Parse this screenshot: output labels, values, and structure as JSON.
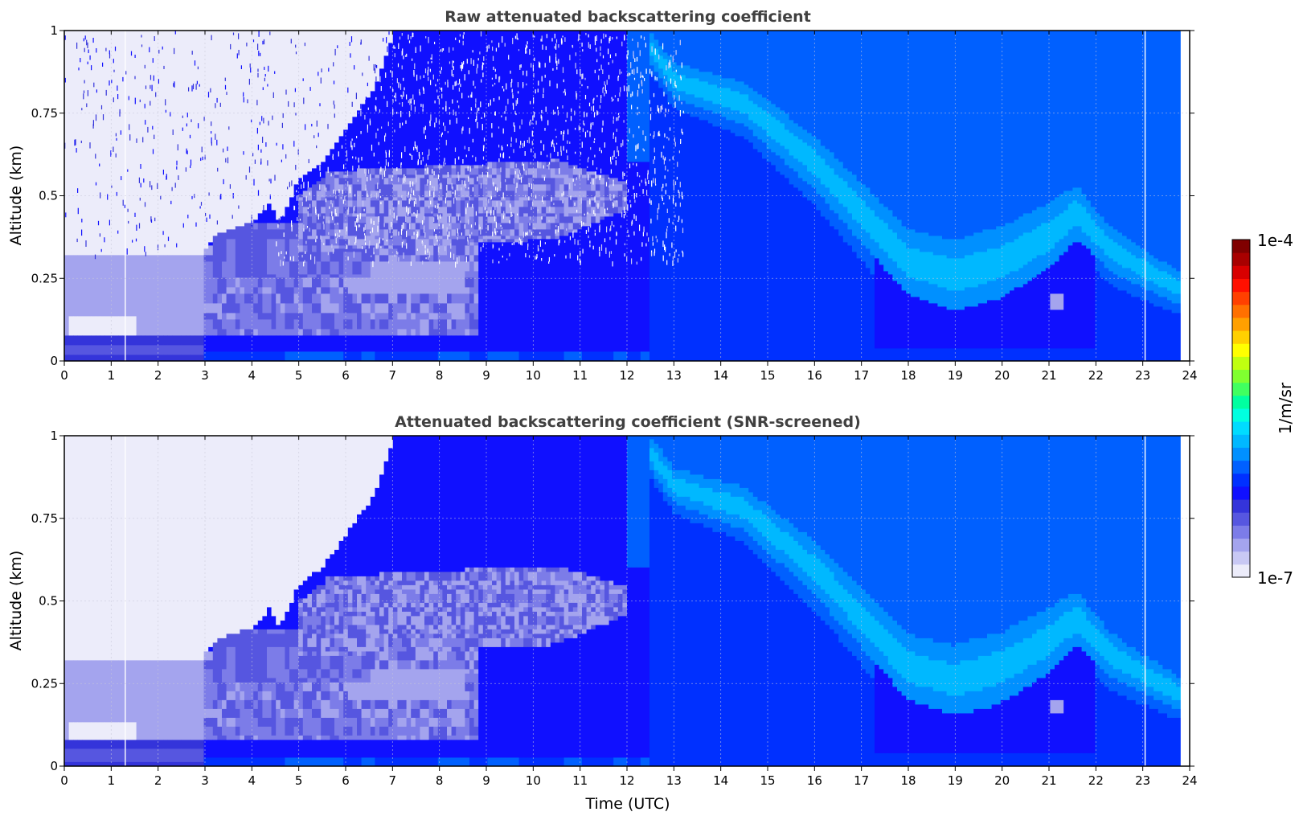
{
  "chart_data": [
    {
      "type": "heatmap",
      "title": "Raw attenuated backscattering coefficient",
      "xlabel": "",
      "ylabel": "Altitude (km)",
      "xlim": [
        0,
        24
      ],
      "ylim": [
        0,
        1
      ],
      "xticks": [
        0,
        1,
        2,
        3,
        4,
        5,
        6,
        7,
        8,
        9,
        10,
        11,
        12,
        13,
        14,
        15,
        16,
        17,
        18,
        19,
        20,
        21,
        22,
        23,
        24
      ],
      "yticks": [
        0,
        0.25,
        0.5,
        0.75,
        1
      ],
      "ytick_labels": [
        "0",
        "0.25",
        "0.5",
        "0.75",
        "1"
      ],
      "grid": true,
      "noise": true,
      "layers": [
        {
          "name": "cloud-free sky (low signal)",
          "from_x": 0,
          "to_x": 6.8,
          "altitude_km": "0.35-1.0",
          "level": "very low"
        },
        {
          "name": "aerosol near surface",
          "from_x": 0,
          "to_x": 3,
          "altitude_km": "0.08-0.3",
          "level": "low"
        },
        {
          "name": "growing boundary layer",
          "from_x": 3,
          "to_x": 12,
          "altitude_km": "0-0.7",
          "level": "low-moderate"
        },
        {
          "name": "elevated layer",
          "from_x": 13,
          "to_x": 23.8,
          "altitude_km": "0.2-0.85",
          "level": "moderate"
        }
      ]
    },
    {
      "type": "heatmap",
      "title": "Attenuated backscattering coefficient (SNR-screened)",
      "xlabel": "Time (UTC)",
      "ylabel": "Altitude (km)",
      "xlim": [
        0,
        24
      ],
      "ylim": [
        0,
        1
      ],
      "xticks": [
        0,
        1,
        2,
        3,
        4,
        5,
        6,
        7,
        8,
        9,
        10,
        11,
        12,
        13,
        14,
        15,
        16,
        17,
        18,
        19,
        20,
        21,
        22,
        23,
        24
      ],
      "yticks": [
        0,
        0.25,
        0.5,
        0.75,
        1
      ],
      "ytick_labels": [
        "0",
        "0.25",
        "0.5",
        "0.75",
        "1"
      ],
      "grid": true,
      "noise": false,
      "layers": [
        {
          "name": "cloud-free sky (low signal)",
          "from_x": 0,
          "to_x": 6.8,
          "altitude_km": "0.35-1.0",
          "level": "very low"
        },
        {
          "name": "aerosol near surface",
          "from_x": 0,
          "to_x": 3,
          "altitude_km": "0.08-0.3",
          "level": "low"
        },
        {
          "name": "growing boundary layer",
          "from_x": 3,
          "to_x": 12,
          "altitude_km": "0-0.7",
          "level": "low-moderate"
        },
        {
          "name": "elevated layer",
          "from_x": 13,
          "to_x": 23.8,
          "altitude_km": "0.2-0.85",
          "level": "moderate"
        }
      ]
    }
  ],
  "colorbar": {
    "min_label": "1e-7",
    "max_label": "1e-4",
    "unit_label": "1/m/sr",
    "scale": "log",
    "colors": [
      "#ececfa",
      "#c8c8f4",
      "#a4a4ee",
      "#7c7ce8",
      "#5656e0",
      "#3434da",
      "#1010ff",
      "#0030ff",
      "#0060ff",
      "#0090ff",
      "#00b8ff",
      "#00dcff",
      "#00ffe0",
      "#00ffa0",
      "#40ff60",
      "#80ff30",
      "#c0ff10",
      "#ffff00",
      "#ffd000",
      "#ffa000",
      "#ff7000",
      "#ff4000",
      "#ff1000",
      "#d80000",
      "#a80000",
      "#800000"
    ]
  }
}
